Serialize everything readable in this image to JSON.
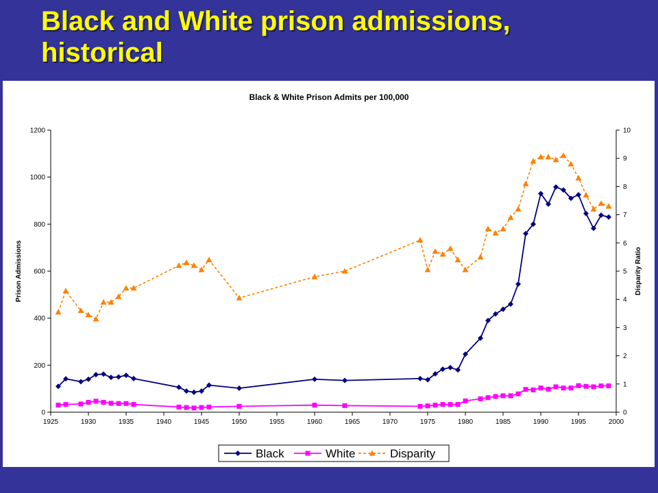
{
  "slide": {
    "title_line1": "Black and White prison admissions,",
    "title_line2": "historical"
  },
  "chart_data": {
    "type": "line",
    "title": "Black & White Prison Admits per 100,000",
    "xlabel": "",
    "ylabel": "Prison Admissions",
    "y2label": "Disparity Ratio",
    "xlim": [
      1925,
      2000
    ],
    "ylim": [
      0,
      1200
    ],
    "y2lim": [
      0,
      10
    ],
    "xticks": [
      1925,
      1930,
      1935,
      1940,
      1945,
      1950,
      1955,
      1960,
      1965,
      1970,
      1975,
      1980,
      1985,
      1990,
      1995,
      2000
    ],
    "yticks": [
      0,
      200,
      400,
      600,
      800,
      1000,
      1200
    ],
    "y2ticks": [
      0,
      1,
      2,
      3,
      4,
      5,
      6,
      7,
      8,
      9,
      10
    ],
    "grid": false,
    "legend_position": "bottom",
    "colors": {
      "black": "#000080",
      "white": "#ff00ff",
      "disparity": "#ff8000"
    },
    "series": [
      {
        "name": "Black",
        "axis": "left",
        "marker": "diamond",
        "x": [
          1926,
          1927,
          1929,
          1930,
          1931,
          1932,
          1933,
          1934,
          1935,
          1936,
          1942,
          1943,
          1944,
          1945,
          1946,
          1950,
          1960,
          1964,
          1974,
          1975,
          1976,
          1977,
          1978,
          1979,
          1980,
          1982,
          1983,
          1984,
          1985,
          1986,
          1987,
          1988,
          1989,
          1990,
          1991,
          1992,
          1993,
          1994,
          1995,
          1996,
          1997,
          1998,
          1999
        ],
        "y": [
          110,
          142,
          130,
          140,
          160,
          162,
          148,
          150,
          157,
          143,
          106,
          90,
          85,
          90,
          115,
          102,
          140,
          135,
          143,
          138,
          163,
          183,
          190,
          180,
          247,
          315,
          390,
          418,
          438,
          460,
          545,
          760,
          800,
          930,
          885,
          958,
          945,
          910,
          925,
          845,
          782,
          838,
          830
        ]
      },
      {
        "name": "White",
        "axis": "left",
        "marker": "square",
        "x": [
          1926,
          1927,
          1929,
          1930,
          1931,
          1932,
          1933,
          1934,
          1935,
          1936,
          1942,
          1943,
          1944,
          1945,
          1946,
          1950,
          1960,
          1964,
          1974,
          1975,
          1976,
          1977,
          1978,
          1979,
          1980,
          1982,
          1983,
          1984,
          1985,
          1986,
          1987,
          1988,
          1989,
          1990,
          1991,
          1992,
          1993,
          1994,
          1995,
          1996,
          1997,
          1998,
          1999
        ],
        "y": [
          30,
          33,
          35,
          42,
          47,
          42,
          38,
          37,
          37,
          33,
          22,
          20,
          18,
          20,
          22,
          25,
          30,
          28,
          25,
          27,
          30,
          33,
          33,
          33,
          48,
          57,
          62,
          67,
          70,
          70,
          78,
          97,
          95,
          103,
          98,
          108,
          103,
          103,
          113,
          110,
          108,
          112,
          112
        ]
      },
      {
        "name": "Disparity",
        "axis": "right",
        "marker": "triangle",
        "dashed": true,
        "x": [
          1926,
          1927,
          1929,
          1930,
          1931,
          1932,
          1933,
          1934,
          1935,
          1936,
          1942,
          1943,
          1944,
          1945,
          1946,
          1950,
          1960,
          1964,
          1974,
          1975,
          1976,
          1977,
          1978,
          1979,
          1980,
          1982,
          1983,
          1984,
          1985,
          1986,
          1987,
          1988,
          1989,
          1990,
          1991,
          1992,
          1993,
          1994,
          1995,
          1996,
          1997,
          1998,
          1999
        ],
        "y": [
          3.55,
          4.3,
          3.6,
          3.45,
          3.3,
          3.9,
          3.9,
          4.1,
          4.4,
          4.4,
          5.2,
          5.3,
          5.2,
          5.05,
          5.4,
          4.05,
          4.8,
          5.0,
          6.1,
          5.05,
          5.7,
          5.6,
          5.8,
          5.4,
          5.05,
          5.5,
          6.5,
          6.35,
          6.5,
          6.9,
          7.2,
          8.1,
          8.9,
          9.05,
          9.05,
          8.95,
          9.1,
          8.8,
          8.3,
          7.7,
          7.2,
          7.4,
          7.3
        ]
      }
    ]
  }
}
